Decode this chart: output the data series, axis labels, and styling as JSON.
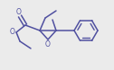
{
  "bg_color": "#ebebeb",
  "line_color": "#5050a0",
  "line_width": 1.1,
  "figsize": [
    1.26,
    0.78
  ],
  "dpi": 100,
  "xlim": [
    0,
    126
  ],
  "ylim": [
    0,
    78
  ]
}
